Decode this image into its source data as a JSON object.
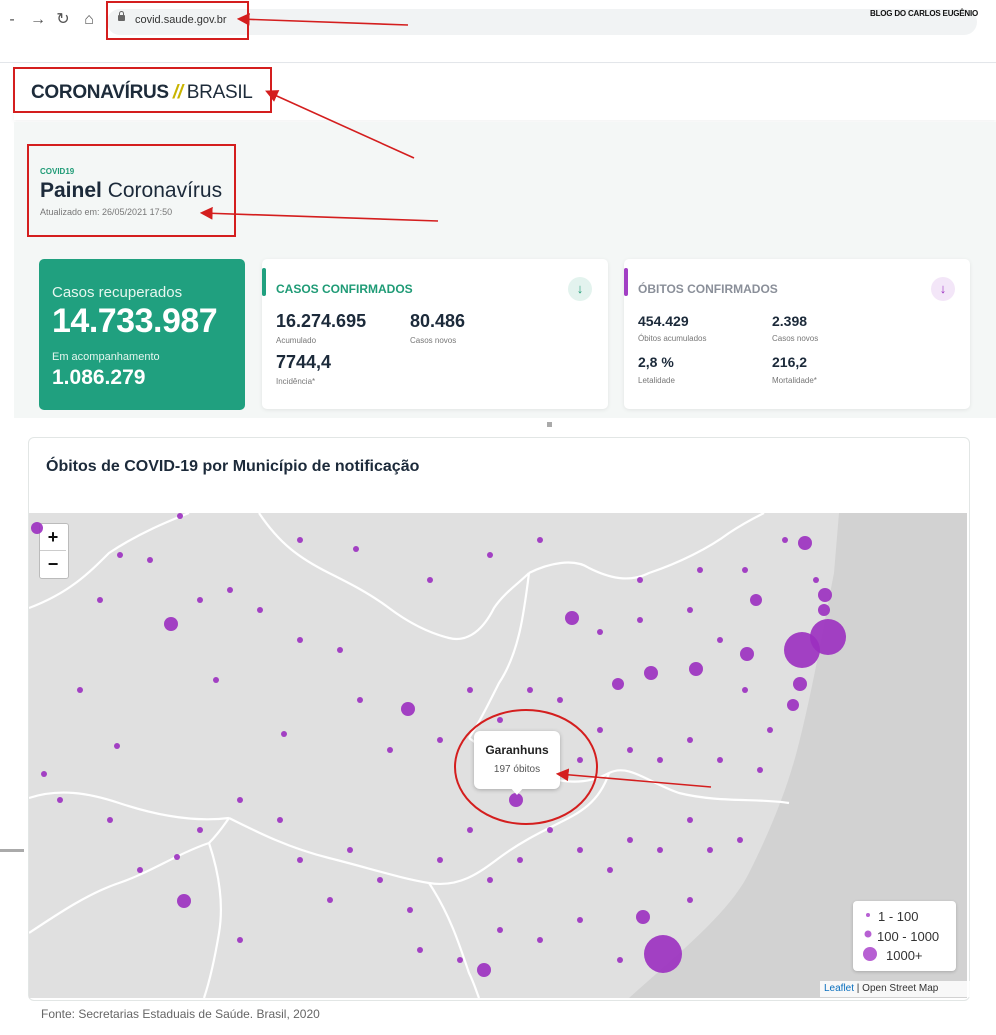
{
  "browser": {
    "url": "covid.saude.gov.br",
    "watermark": "BLOG DO CARLOS EUGÊNIO"
  },
  "header": {
    "brand_main": "CORONAVÍRUS",
    "brand_slash": "//",
    "brand_sub": "BRASIL"
  },
  "panel": {
    "eyebrow": "COVID19",
    "title_bold": "Painel",
    "title_rest": " Coronavírus",
    "updated": "Atualizado em: 26/05/2021 17:50"
  },
  "recovered": {
    "label": "Casos recuperados",
    "value": "14.733.987",
    "following_label": "Em acompanhamento",
    "following_value": "1.086.279"
  },
  "cases": {
    "title": "CASOS CONFIRMADOS",
    "accum_value": "16.274.695",
    "accum_label": "Acumulado",
    "new_value": "80.486",
    "new_label": "Casos novos",
    "incid_value": "7744,4",
    "incid_label": "Incidência*",
    "accent": "#20a07f"
  },
  "deaths": {
    "title": "ÓBITOS CONFIRMADOS",
    "accum_value": "454.429",
    "accum_label": "Óbitos acumulados",
    "new_value": "2.398",
    "new_label": "Casos novos",
    "lethality_value": "2,8 %",
    "lethality_label": "Letalidade",
    "mortality_value": "216,2",
    "mortality_label": "Mortalidade*",
    "accent": "#a23fc4"
  },
  "map": {
    "title": "Óbitos de COVID-19 por Município de notificação",
    "zoom_in": "+",
    "zoom_out": "−",
    "tooltip_city": "Garanhuns",
    "tooltip_value": "197 óbitos",
    "legend": [
      "1 - 100",
      "100 - 1000",
      "1000+"
    ],
    "attrib_link": "Leaflet",
    "attrib_rest": " | Open Street Map",
    "marker_color": "#9b2fc0"
  },
  "footer": {
    "source": "Fonte: Secretarias Estaduais de Saúde. Brasil, 2020"
  }
}
